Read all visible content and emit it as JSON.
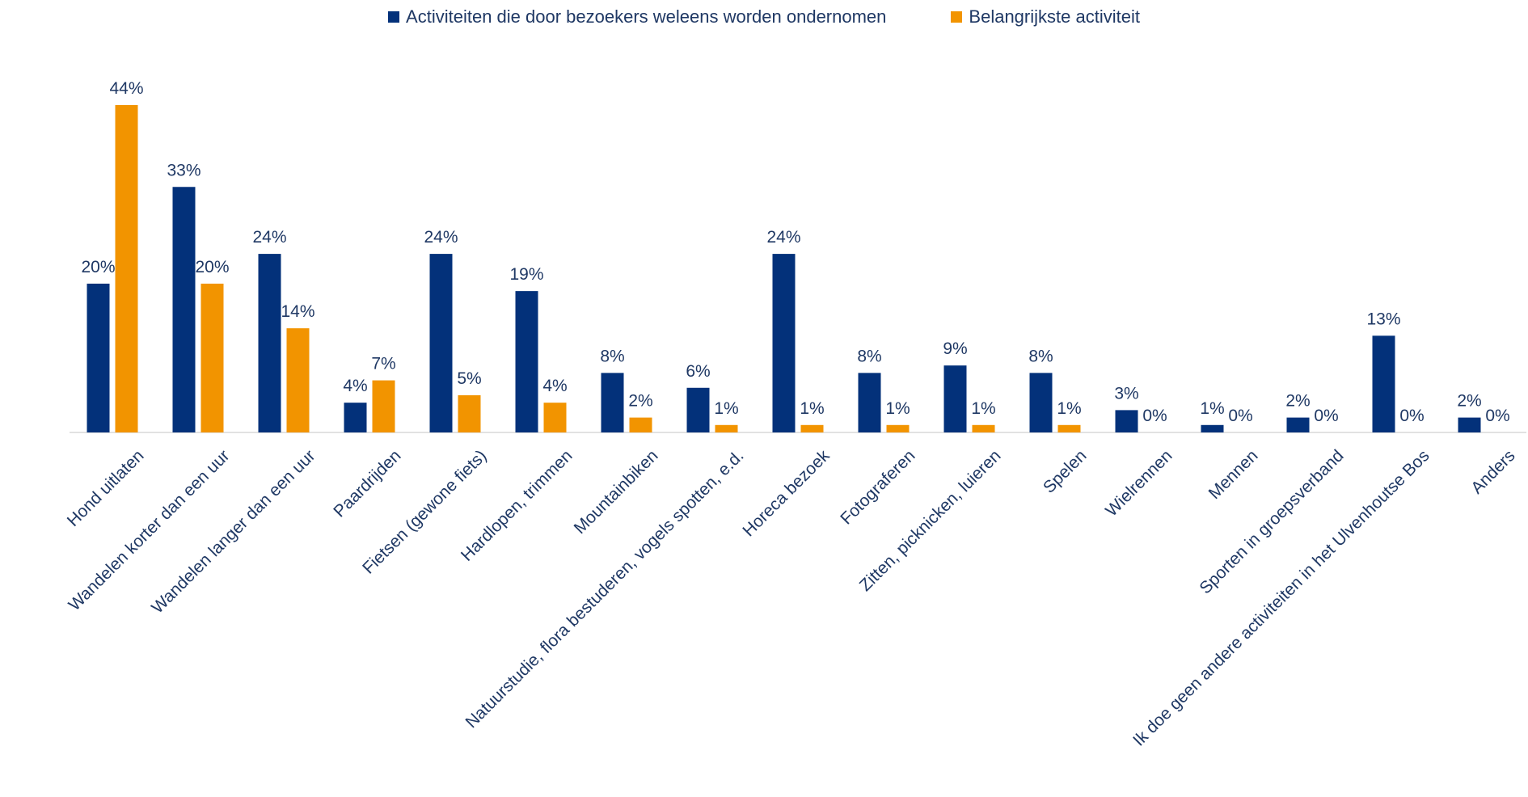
{
  "chart_data": {
    "type": "bar",
    "title": "",
    "xlabel": "",
    "ylabel": "",
    "ylim": [
      0,
      50
    ],
    "grid": false,
    "legend_position": "top",
    "categories": [
      "Hond uitlaten",
      "Wandelen korter dan een uur",
      "Wandelen langer dan een uur",
      "Paardrijden",
      "Fietsen (gewone fiets)",
      "Hardlopen, trimmen",
      "Mountainbiken",
      "Natuurstudie, flora bestuderen, vogels spotten, e.d.",
      "Horeca bezoek",
      "Fotograferen",
      "Zitten, picknicken, luieren",
      "Spelen",
      "Wielrennen",
      "Mennen",
      "Sporten in groepsverband",
      "Ik doe geen andere activiteiten in het Ulvenhoutse Bos",
      "Anders"
    ],
    "series": [
      {
        "name": "Activiteiten die door bezoekers weleens worden ondernomen",
        "color": "#03317a",
        "values": [
          20,
          33,
          24,
          4,
          24,
          19,
          8,
          6,
          24,
          8,
          9,
          8,
          3,
          1,
          2,
          13,
          2
        ],
        "labels": [
          "20%",
          "33%",
          "24%",
          "4%",
          "24%",
          "19%",
          "8%",
          "6%",
          "24%",
          "8%",
          "9%",
          "8%",
          "3%",
          "1%",
          "2%",
          "13%",
          "2%"
        ]
      },
      {
        "name": "Belangrijkste activiteit",
        "color": "#f29400",
        "values": [
          44,
          20,
          14,
          7,
          5,
          4,
          2,
          1,
          1,
          1,
          1,
          1,
          0,
          0,
          0,
          0,
          0
        ],
        "labels": [
          "44%",
          "20%",
          "14%",
          "7%",
          "5%",
          "4%",
          "2%",
          "1%",
          "1%",
          "1%",
          "1%",
          "1%",
          "0%",
          "0%",
          "0%",
          "0%",
          "0%"
        ]
      }
    ]
  }
}
